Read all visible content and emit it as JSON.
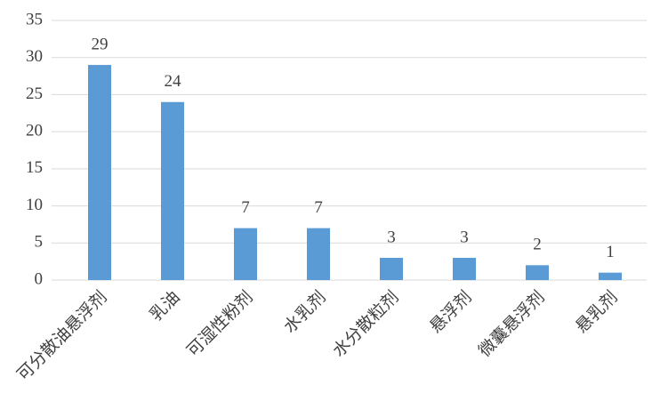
{
  "chart_data": {
    "type": "bar",
    "categories": [
      "可分散油悬浮剂",
      "乳油",
      "可湿性粉剂",
      "水乳剂",
      "水分散粒剂",
      "悬浮剂",
      "微囊悬浮剂",
      "悬乳剂"
    ],
    "values": [
      29,
      24,
      7,
      7,
      3,
      3,
      2,
      1
    ],
    "color": "#5b9bd5",
    "ylim": [
      0,
      35
    ],
    "yticks": [
      0,
      5,
      10,
      15,
      20,
      25,
      30,
      35
    ],
    "grid": true
  }
}
